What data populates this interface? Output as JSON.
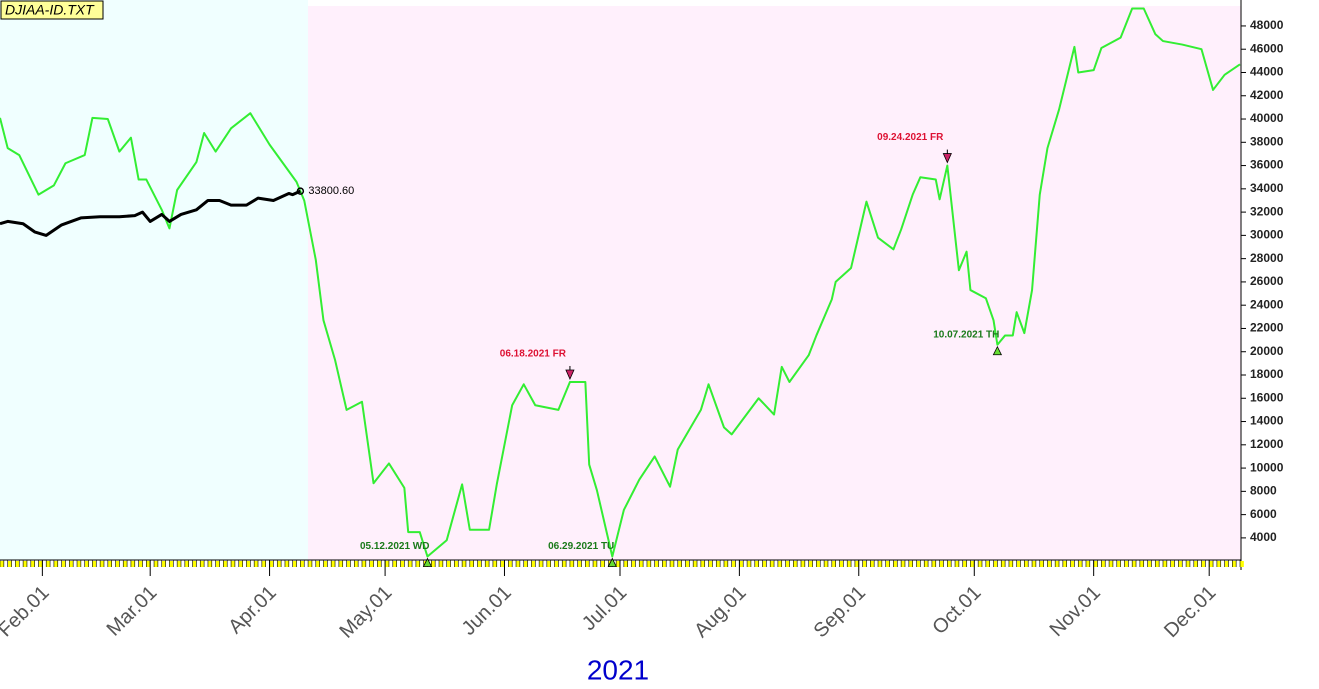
{
  "chart_data": {
    "type": "line",
    "file_label": "DJIAA-ID.TXT",
    "xlabel": "2021",
    "xlim": [
      "2021-01-21",
      "2021-12-09"
    ],
    "xticks": [
      {
        "value": "2021-02-01",
        "label": "Feb.01"
      },
      {
        "value": "2021-03-01",
        "label": "Mar.01"
      },
      {
        "value": "2021-04-01",
        "label": "Apr.01"
      },
      {
        "value": "2021-05-01",
        "label": "May.01"
      },
      {
        "value": "2021-06-01",
        "label": "Jun.01"
      },
      {
        "value": "2021-07-01",
        "label": "Jul.01"
      },
      {
        "value": "2021-08-01",
        "label": "Aug.01"
      },
      {
        "value": "2021-09-01",
        "label": "Sep.01"
      },
      {
        "value": "2021-10-01",
        "label": "Oct.01"
      },
      {
        "value": "2021-11-01",
        "label": "Nov.01"
      },
      {
        "value": "2021-12-01",
        "label": "Dec.01"
      }
    ],
    "ylim": [
      2100,
      49800
    ],
    "yticks": [
      4000,
      6000,
      8000,
      10000,
      12000,
      14000,
      16000,
      18000,
      20000,
      22000,
      24000,
      26000,
      28000,
      30000,
      32000,
      34000,
      36000,
      38000,
      40000,
      42000,
      44000,
      46000,
      48000
    ],
    "series": [
      {
        "color": "#33ee33",
        "x": [
          "2021-01-21",
          "2021-01-23",
          "2021-01-26",
          "2021-01-31",
          "2021-02-04",
          "2021-02-07",
          "2021-02-12",
          "2021-02-14",
          "2021-02-18",
          "2021-02-21",
          "2021-02-24",
          "2021-02-26",
          "2021-02-28",
          "2021-03-04",
          "2021-03-06",
          "2021-03-08",
          "2021-03-13",
          "2021-03-15",
          "2021-03-18",
          "2021-03-22",
          "2021-03-27",
          "2021-04-01",
          "2021-04-08",
          "2021-04-10",
          "2021-04-13",
          "2021-04-15",
          "2021-04-18",
          "2021-04-21",
          "2021-04-25",
          "2021-04-28",
          "2021-05-02",
          "2021-05-06",
          "2021-05-07",
          "2021-05-10",
          "2021-05-12",
          "2021-05-17",
          "2021-05-21",
          "2021-05-23",
          "2021-05-28",
          "2021-05-30",
          "2021-06-03",
          "2021-06-06",
          "2021-06-09",
          "2021-06-15",
          "2021-06-18",
          "2021-06-22",
          "2021-06-23",
          "2021-06-25",
          "2021-06-29",
          "2021-07-02",
          "2021-07-06",
          "2021-07-10",
          "2021-07-14",
          "2021-07-16",
          "2021-07-22",
          "2021-07-24",
          "2021-07-28",
          "2021-07-30",
          "2021-08-06",
          "2021-08-10",
          "2021-08-12",
          "2021-08-14",
          "2021-08-19",
          "2021-08-21",
          "2021-08-25",
          "2021-08-26",
          "2021-08-30",
          "2021-09-03",
          "2021-09-06",
          "2021-09-10",
          "2021-09-12",
          "2021-09-15",
          "2021-09-17",
          "2021-09-21",
          "2021-09-22",
          "2021-09-24",
          "2021-09-27",
          "2021-09-29",
          "2021-09-30",
          "2021-10-04",
          "2021-10-06",
          "2021-10-07",
          "2021-10-09",
          "2021-10-11",
          "2021-10-12",
          "2021-10-14",
          "2021-10-16",
          "2021-10-18",
          "2021-10-20",
          "2021-10-23",
          "2021-10-27",
          "2021-10-28",
          "2021-11-01",
          "2021-11-03",
          "2021-11-08",
          "2021-11-11",
          "2021-11-14",
          "2021-11-17",
          "2021-11-19",
          "2021-11-24",
          "2021-11-29",
          "2021-12-02",
          "2021-12-05",
          "2021-12-09"
        ],
        "values": [
          40100,
          37500,
          36900,
          33500,
          34300,
          36200,
          36900,
          40100,
          40000,
          37200,
          38400,
          34800,
          34800,
          32200,
          30600,
          33900,
          36300,
          38800,
          37200,
          39200,
          40500,
          37800,
          34600,
          33000,
          27900,
          22700,
          19300,
          15000,
          15700,
          8700,
          10400,
          8300,
          4500,
          4500,
          2400,
          3800,
          8600,
          4700,
          4700,
          8600,
          15400,
          17200,
          15400,
          15000,
          17400,
          17400,
          10300,
          8100,
          2400,
          6400,
          9000,
          11000,
          8400,
          11600,
          15000,
          17200,
          13500,
          12900,
          16000,
          14600,
          18700,
          17400,
          19700,
          21400,
          24500,
          26000,
          27200,
          32900,
          29800,
          28800,
          30500,
          33500,
          35000,
          34800,
          33100,
          36000,
          27000,
          28600,
          25300,
          24600,
          22700,
          20600,
          21400,
          21400,
          23400,
          21600,
          25300,
          33500,
          37500,
          40800,
          46200,
          44000,
          44200,
          46100,
          47000,
          49500,
          49500,
          47300,
          46700,
          46400,
          46000,
          42500,
          43800,
          44700
        ]
      },
      {
        "color": "#000000",
        "x": [
          "2021-01-21",
          "2021-01-23",
          "2021-01-27",
          "2021-01-30",
          "2021-02-02",
          "2021-02-06",
          "2021-02-11",
          "2021-02-16",
          "2021-02-21",
          "2021-02-25",
          "2021-02-27",
          "2021-03-01",
          "2021-03-04",
          "2021-03-06",
          "2021-03-09",
          "2021-03-13",
          "2021-03-16",
          "2021-03-19",
          "2021-03-22",
          "2021-03-26",
          "2021-03-29",
          "2021-04-02",
          "2021-04-06",
          "2021-04-07",
          "2021-04-09"
        ],
        "values": [
          31000,
          31200,
          31000,
          30300,
          30000,
          30900,
          31500,
          31600,
          31600,
          31700,
          32000,
          31200,
          31800,
          31200,
          31800,
          32200,
          33000,
          33000,
          32600,
          32600,
          33200,
          33000,
          33600,
          33500,
          33800.6
        ],
        "value_labels": [
          null,
          null,
          null,
          null,
          null,
          null,
          null,
          null,
          null,
          null,
          null,
          null,
          null,
          null,
          null,
          null,
          null,
          null,
          null,
          null,
          null,
          null,
          null,
          null,
          "33800.60"
        ]
      }
    ],
    "annotations": [
      {
        "text": "06.18.2021 FR",
        "x": "2021-06-18",
        "position": "above",
        "color": "#dd1133"
      },
      {
        "text": "09.24.2021 FR",
        "x": "2021-09-24",
        "position": "above",
        "color": "#dd1133"
      },
      {
        "text": "05.12.2021 WD",
        "x": "2021-05-12",
        "position": "below",
        "color": "#1a7a1a"
      },
      {
        "text": "06.29.2021 TU",
        "x": "2021-06-29",
        "position": "below",
        "color": "#1a7a1a"
      },
      {
        "text": "10.07.2021 TH",
        "x": "2021-10-07",
        "position": "below",
        "color": "#1a7a1a"
      }
    ]
  }
}
